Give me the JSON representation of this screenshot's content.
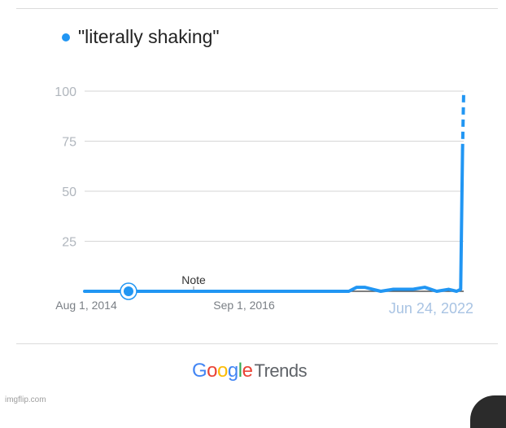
{
  "colors": {
    "series": "#2196f3",
    "grid": "#d6d6d6",
    "tick": "#b0b6bd",
    "axis": "#555555"
  },
  "chart_data": {
    "type": "line",
    "series": [
      {
        "name": "\"literally shaking\"",
        "x": [
          "2014-08-01",
          "2015-02-01",
          "2015-08-01",
          "2016-02-01",
          "2016-08-01",
          "2017-02-01",
          "2017-08-01",
          "2018-02-01",
          "2018-08-01",
          "2019-02-01",
          "2019-08-01",
          "2020-02-01",
          "2020-04-01",
          "2020-06-01",
          "2020-08-01",
          "2020-10-01",
          "2021-01-01",
          "2021-03-01",
          "2021-06-01",
          "2021-09-01",
          "2021-12-01",
          "2022-03-01",
          "2022-05-01",
          "2022-06-01",
          "2022-06-15",
          "2022-06-24"
        ],
        "values": [
          0,
          0,
          0,
          0,
          0,
          0,
          0,
          0,
          0,
          0,
          0,
          0,
          2,
          2,
          1,
          0,
          1,
          1,
          1,
          2,
          0,
          1,
          0,
          1,
          70,
          100
        ],
        "partial_from_index": 24
      }
    ],
    "x_tick_labels": [
      "Aug 1, 2014",
      "Sep 1, 2016",
      "Jun 24, 2022"
    ],
    "y_ticks": [
      25,
      50,
      75,
      100
    ],
    "ylim": [
      0,
      100
    ],
    "xlim": [
      "2014-08-01",
      "2022-06-24"
    ],
    "grid": true,
    "annotations": [
      {
        "label": "Note",
        "x": "2015-07-01"
      }
    ]
  },
  "footer": {
    "brand_google": "Google",
    "brand_trends": "Trends",
    "watermark": "imgflip.com"
  }
}
